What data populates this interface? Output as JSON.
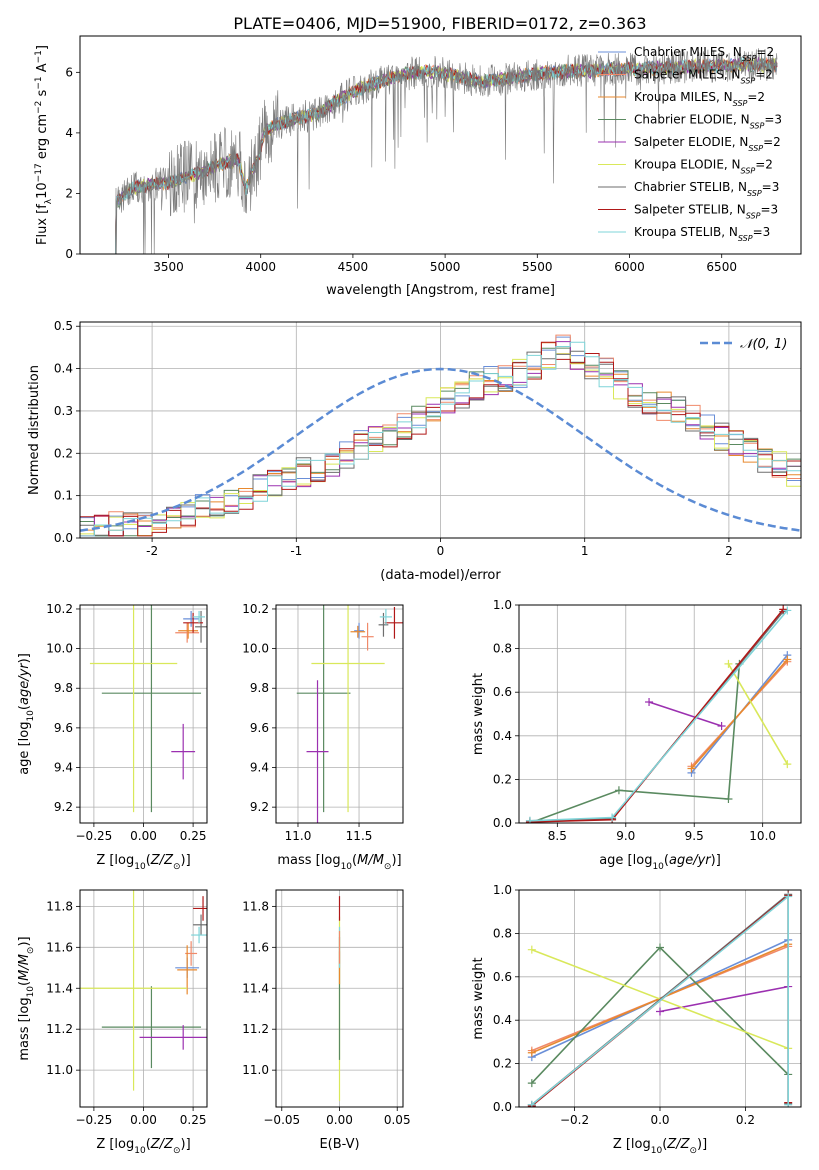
{
  "figure_title": "PLATE=0406, MJD=51900, FIBERID=0172, z=0.363",
  "colors": {
    "Chabrier MILES": "#6a8fd8",
    "Salpeter MILES": "#f08a6a",
    "Kroupa MILES": "#e8892e",
    "Chabrier ELODIE": "#5a8a60",
    "Salpeter ELODIE": "#9b30b0",
    "Kroupa ELODIE": "#d9e85a",
    "Chabrier STELIB": "#6e6e6e",
    "Salpeter STELIB": "#b01818",
    "Kroupa STELIB": "#7fd4d8",
    "gaussian": "#5b8bd4"
  },
  "chart_data": [
    {
      "id": "spectrum",
      "type": "line",
      "xlabel": "wavelength [Angstrom, rest frame]",
      "ylabel_parts": [
        "Flux [f",
        "λ",
        "10",
        "−17",
        " erg cm",
        "−2",
        " s",
        "−1",
        " A",
        "−1",
        "]"
      ],
      "xlim": [
        3020,
        6930
      ],
      "ylim": [
        0,
        7.2
      ],
      "xticks": [
        3500,
        4000,
        4500,
        5000,
        5500,
        6000,
        6500
      ],
      "yticks": [
        0,
        2,
        4,
        6
      ],
      "x_start": 3200,
      "x_end": 6800,
      "continuum_nodes": [
        [
          3200,
          0.0
        ],
        [
          3215,
          1.7
        ],
        [
          3300,
          2.15
        ],
        [
          3400,
          2.3
        ],
        [
          3500,
          2.35
        ],
        [
          3600,
          2.55
        ],
        [
          3700,
          2.75
        ],
        [
          3800,
          3.0
        ],
        [
          3880,
          3.1
        ],
        [
          3920,
          2.1
        ],
        [
          3950,
          2.7
        ],
        [
          3990,
          3.2
        ],
        [
          4020,
          4.05
        ],
        [
          4100,
          4.3
        ],
        [
          4200,
          4.5
        ],
        [
          4300,
          4.6
        ],
        [
          4400,
          5.0
        ],
        [
          4500,
          5.35
        ],
        [
          4600,
          5.6
        ],
        [
          4700,
          5.8
        ],
        [
          4800,
          5.95
        ],
        [
          4900,
          6.05
        ],
        [
          5000,
          5.95
        ],
        [
          5100,
          5.8
        ],
        [
          5200,
          5.7
        ],
        [
          5300,
          5.75
        ],
        [
          5400,
          5.85
        ],
        [
          5500,
          5.95
        ],
        [
          5600,
          6.0
        ],
        [
          5700,
          6.05
        ],
        [
          5800,
          6.05
        ],
        [
          5900,
          6.1
        ],
        [
          6000,
          6.1
        ],
        [
          6200,
          6.15
        ],
        [
          6400,
          6.2
        ],
        [
          6600,
          6.25
        ],
        [
          6800,
          6.25
        ]
      ],
      "legend": [
        {
          "label": "Chabrier MILES",
          "nssp": "2"
        },
        {
          "label": "Salpeter MILES",
          "nssp": "2"
        },
        {
          "label": "Kroupa MILES",
          "nssp": "2"
        },
        {
          "label": "Chabrier ELODIE",
          "nssp": "3"
        },
        {
          "label": "Salpeter ELODIE",
          "nssp": "2"
        },
        {
          "label": "Kroupa ELODIE",
          "nssp": "2"
        },
        {
          "label": "Chabrier STELIB",
          "nssp": "3"
        },
        {
          "label": "Salpeter STELIB",
          "nssp": "3"
        },
        {
          "label": "Kroupa STELIB",
          "nssp": "3"
        }
      ],
      "legend_position": "upper right",
      "legend_nssp_prefix": "N",
      "legend_nssp_sub": "SSP"
    },
    {
      "id": "residual_histogram",
      "type": "histogram",
      "xlabel": "(data-model)/error",
      "ylabel": "Normed distribution",
      "xlim": [
        -2.5,
        2.5
      ],
      "ylim": [
        0,
        0.51
      ],
      "xticks": [
        -2,
        -1,
        0,
        1,
        2
      ],
      "yticks": [
        0.0,
        0.1,
        0.2,
        0.3,
        0.4,
        0.5
      ],
      "bin_width": 0.1,
      "bin_start": -2.5,
      "base_values": [
        0.022,
        0.025,
        0.028,
        0.032,
        0.038,
        0.045,
        0.052,
        0.06,
        0.07,
        0.08,
        0.09,
        0.1,
        0.115,
        0.13,
        0.14,
        0.155,
        0.165,
        0.18,
        0.2,
        0.22,
        0.235,
        0.25,
        0.265,
        0.28,
        0.3,
        0.32,
        0.34,
        0.36,
        0.37,
        0.38,
        0.39,
        0.41,
        0.43,
        0.45,
        0.43,
        0.41,
        0.39,
        0.36,
        0.34,
        0.32,
        0.31,
        0.3,
        0.28,
        0.26,
        0.24,
        0.225,
        0.21,
        0.19,
        0.17,
        0.155,
        0.14,
        0.13,
        0.115,
        0.1,
        0.09,
        0.08,
        0.07,
        0.06,
        0.05,
        0.045
      ],
      "gaussian_label": "𝒩(0, 1)",
      "gaussian_mu": 0,
      "gaussian_sigma": 1,
      "legend_position": "upper right"
    },
    {
      "id": "age_vs_Z",
      "type": "errorbar",
      "xlabel_parts": [
        "Z [log",
        "10",
        "(",
        "Z/Z",
        "⊙",
        ")]"
      ],
      "ylabel_parts": [
        "age  [log",
        "10",
        "(",
        "age/yr",
        ")]"
      ],
      "xlim": [
        -0.32,
        0.32
      ],
      "ylim": [
        9.12,
        10.22
      ],
      "xticks": [
        -0.25,
        0.0,
        0.25
      ],
      "xtick_labels": [
        "−0.25",
        "0.00",
        "0.25"
      ],
      "yticks": [
        9.2,
        9.4,
        9.6,
        9.8,
        10.0,
        10.2
      ],
      "points": [
        {
          "model": "Chabrier MILES",
          "x": 0.24,
          "y": 10.15,
          "xerr": 0.04,
          "yerr": 0.04
        },
        {
          "model": "Salpeter MILES",
          "x": 0.22,
          "y": 10.08,
          "xerr": 0.06,
          "yerr": 0.05
        },
        {
          "model": "Kroupa MILES",
          "x": 0.225,
          "y": 10.09,
          "xerr": 0.05,
          "yerr": 0.04
        },
        {
          "model": "Chabrier ELODIE",
          "x": 0.04,
          "y": 9.775,
          "xerr": 0.25,
          "yerr": 0.6
        },
        {
          "model": "Salpeter ELODIE",
          "x": 0.2,
          "y": 9.48,
          "xerr": 0.06,
          "yerr": 0.14
        },
        {
          "model": "Salpeter ELODIE",
          "x": -0.02,
          "y": 9.48,
          "xerr": 0.0,
          "yerr": 0.0
        },
        {
          "model": "Kroupa ELODIE",
          "x": -0.05,
          "y": 9.925,
          "xerr": 0.22,
          "yerr": 0.75
        },
        {
          "model": "Chabrier STELIB",
          "x": 0.29,
          "y": 10.11,
          "xerr": 0.03,
          "yerr": 0.08
        },
        {
          "model": "Salpeter STELIB",
          "x": 0.25,
          "y": 10.13,
          "xerr": 0.05,
          "yerr": 0.05
        },
        {
          "model": "Kroupa STELIB",
          "x": 0.28,
          "y": 10.16,
          "xerr": 0.03,
          "yerr": 0.03
        }
      ]
    },
    {
      "id": "age_vs_mass",
      "type": "errorbar",
      "xlabel_parts": [
        "mass [log",
        "10",
        "(",
        "M/M",
        "⊙",
        ")]"
      ],
      "ylabel_parts": [],
      "xlim": [
        10.82,
        11.86
      ],
      "ylim": [
        9.12,
        10.22
      ],
      "xticks": [
        11.0,
        11.5
      ],
      "xtick_labels": [
        "11.0",
        "11.5"
      ],
      "yticks": [
        9.2,
        9.4,
        9.6,
        9.8,
        10.0,
        10.2
      ],
      "points": [
        {
          "model": "Chabrier MILES",
          "x": 11.5,
          "y": 10.09,
          "xerr": 0.04,
          "yerr": 0.04
        },
        {
          "model": "Salpeter MILES",
          "x": 11.57,
          "y": 10.06,
          "xerr": 0.05,
          "yerr": 0.07
        },
        {
          "model": "Kroupa MILES",
          "x": 11.49,
          "y": 10.085,
          "xerr": 0.06,
          "yerr": 0.03
        },
        {
          "model": "Chabrier ELODIE",
          "x": 11.21,
          "y": 9.775,
          "xerr": 0.22,
          "yerr": 0.6
        },
        {
          "model": "Salpeter ELODIE",
          "x": 11.16,
          "y": 9.48,
          "xerr": 0.09,
          "yerr": 0.36
        },
        {
          "model": "Kroupa ELODIE",
          "x": 11.41,
          "y": 9.925,
          "xerr": 0.3,
          "yerr": 0.75
        },
        {
          "model": "Chabrier STELIB",
          "x": 11.7,
          "y": 10.12,
          "xerr": 0.04,
          "yerr": 0.06
        },
        {
          "model": "Salpeter STELIB",
          "x": 11.79,
          "y": 10.13,
          "xerr": 0.08,
          "yerr": 0.08
        },
        {
          "model": "Kroupa STELIB",
          "x": 11.72,
          "y": 10.16,
          "xerr": 0.05,
          "yerr": 0.04
        }
      ]
    },
    {
      "id": "weight_vs_age",
      "type": "line",
      "xlabel_parts": [
        "age  [log",
        "10",
        "(",
        "age/yr",
        ")]"
      ],
      "ylabel": "mass weight",
      "xlim": [
        8.22,
        10.28
      ],
      "ylim": [
        0,
        1.0
      ],
      "xticks": [
        8.5,
        9.0,
        9.5,
        10.0
      ],
      "xtick_labels": [
        "8.5",
        "9.0",
        "9.5",
        "10.0"
      ],
      "yticks": [
        0.0,
        0.2,
        0.4,
        0.6,
        0.8,
        1.0
      ],
      "series": [
        {
          "model": "Chabrier MILES",
          "points": [
            [
              9.48,
              0.23
            ],
            [
              10.18,
              0.77
            ]
          ]
        },
        {
          "model": "Salpeter MILES",
          "points": [
            [
              9.48,
              0.26
            ],
            [
              10.18,
              0.74
            ]
          ]
        },
        {
          "model": "Kroupa MILES",
          "points": [
            [
              9.48,
              0.25
            ],
            [
              10.18,
              0.75
            ]
          ]
        },
        {
          "model": "Chabrier ELODIE",
          "points": [
            [
              8.3,
              0.0
            ],
            [
              8.95,
              0.15
            ],
            [
              9.75,
              0.11
            ],
            [
              9.83,
              0.73
            ]
          ]
        },
        {
          "model": "Salpeter ELODIE",
          "points": [
            [
              9.17,
              0.555
            ],
            [
              9.7,
              0.445
            ]
          ]
        },
        {
          "model": "Kroupa ELODIE",
          "points": [
            [
              9.75,
              0.73
            ],
            [
              10.18,
              0.27
            ]
          ]
        },
        {
          "model": "Chabrier STELIB",
          "points": [
            [
              8.3,
              0.01
            ],
            [
              8.9,
              0.02
            ],
            [
              10.15,
              0.97
            ]
          ]
        },
        {
          "model": "Salpeter STELIB",
          "points": [
            [
              8.3,
              0.005
            ],
            [
              8.9,
              0.015
            ],
            [
              10.15,
              0.98
            ]
          ]
        },
        {
          "model": "Kroupa STELIB",
          "points": [
            [
              8.3,
              0.01
            ],
            [
              8.9,
              0.025
            ],
            [
              10.18,
              0.975
            ]
          ]
        }
      ]
    },
    {
      "id": "mass_vs_Z",
      "type": "errorbar",
      "xlabel_parts": [
        "Z [log",
        "10",
        "(",
        "Z/Z",
        "⊙",
        ")]"
      ],
      "ylabel_parts": [
        "mass [log",
        "10",
        "(",
        "M/M",
        "⊙",
        ")]"
      ],
      "xlim": [
        -0.32,
        0.32
      ],
      "ylim": [
        10.82,
        11.88
      ],
      "xticks": [
        -0.25,
        0.0,
        0.25
      ],
      "xtick_labels": [
        "−0.25",
        "0.00",
        "0.25"
      ],
      "yticks": [
        11.0,
        11.2,
        11.4,
        11.6,
        11.8
      ],
      "points": [
        {
          "model": "Chabrier MILES",
          "x": 0.22,
          "y": 11.5,
          "xerr": 0.06,
          "yerr": 0.05
        },
        {
          "model": "Salpeter MILES",
          "x": 0.24,
          "y": 11.57,
          "xerr": 0.03,
          "yerr": 0.06
        },
        {
          "model": "Kroupa MILES",
          "x": 0.22,
          "y": 11.49,
          "xerr": 0.05,
          "yerr": 0.12
        },
        {
          "model": "Chabrier ELODIE",
          "x": 0.04,
          "y": 11.21,
          "xerr": 0.25,
          "yerr": 0.2
        },
        {
          "model": "Salpeter ELODIE",
          "x": 0.2,
          "y": 11.16,
          "xerr": 0.22,
          "yerr": 0.06
        },
        {
          "model": "Kroupa ELODIE",
          "x": -0.05,
          "y": 11.4,
          "xerr": 0.27,
          "yerr": 0.5
        },
        {
          "model": "Chabrier STELIB",
          "x": 0.29,
          "y": 11.71,
          "xerr": 0.04,
          "yerr": 0.05
        },
        {
          "model": "Salpeter STELIB",
          "x": 0.3,
          "y": 11.79,
          "xerr": 0.05,
          "yerr": 0.06
        },
        {
          "model": "Kroupa STELIB",
          "x": 0.28,
          "y": 11.66,
          "xerr": 0.04,
          "yerr": 0.04
        }
      ]
    },
    {
      "id": "mass_vs_EBV",
      "type": "errorbar",
      "xlabel": "E(B-V)",
      "ylabel_parts": [],
      "xlim": [
        -0.055,
        0.055
      ],
      "ylim": [
        10.82,
        11.88
      ],
      "xticks": [
        -0.05,
        0.0,
        0.05
      ],
      "xtick_labels": [
        "−0.05",
        "0.00",
        "0.05"
      ],
      "yticks": [
        11.0,
        11.2,
        11.4,
        11.6,
        11.8
      ],
      "points": [
        {
          "model": "Kroupa ELODIE",
          "x": 0.0,
          "y": 11.3,
          "xerr": 0.0,
          "yerr": 0.45
        },
        {
          "model": "Chabrier ELODIE",
          "x": 0.0,
          "y": 11.35,
          "xerr": 0.0,
          "yerr": 0.3
        },
        {
          "model": "Kroupa MILES",
          "x": 0.0,
          "y": 11.5,
          "xerr": 0.0,
          "yerr": 0.08
        },
        {
          "model": "Kroupa STELIB",
          "x": 0.0,
          "y": 11.6,
          "xerr": 0.0,
          "yerr": 0.1
        },
        {
          "model": "Salpeter STELIB",
          "x": 0.0,
          "y": 11.79,
          "xerr": 0.0,
          "yerr": 0.06
        },
        {
          "model": "Salpeter MILES",
          "x": 0.0,
          "y": 11.6,
          "xerr": 0.0,
          "yerr": 0.08
        }
      ]
    },
    {
      "id": "weight_vs_Z",
      "type": "line",
      "xlabel_parts": [
        "Z [log",
        "10",
        "(",
        "Z/Z",
        "⊙",
        ")]"
      ],
      "ylabel": "mass weight",
      "xlim": [
        -0.33,
        0.33
      ],
      "ylim": [
        0,
        1.0
      ],
      "xticks": [
        -0.2,
        0.0,
        0.2
      ],
      "xtick_labels": [
        "−0.2",
        "0.0",
        "0.2"
      ],
      "yticks": [
        0.0,
        0.2,
        0.4,
        0.6,
        0.8,
        1.0
      ],
      "series": [
        {
          "model": "Chabrier MILES",
          "points": [
            [
              -0.3,
              0.23
            ],
            [
              0.3,
              0.77
            ]
          ]
        },
        {
          "model": "Salpeter MILES",
          "points": [
            [
              -0.3,
              0.26
            ],
            [
              0.3,
              0.74
            ]
          ]
        },
        {
          "model": "Kroupa MILES",
          "points": [
            [
              -0.3,
              0.25
            ],
            [
              0.3,
              0.75
            ]
          ]
        },
        {
          "model": "Chabrier ELODIE",
          "points": [
            [
              -0.3,
              0.11
            ],
            [
              0.0,
              0.735
            ],
            [
              0.3,
              0.15
            ]
          ]
        },
        {
          "model": "Salpeter ELODIE",
          "points": [
            [
              0.0,
              0.44
            ],
            [
              0.3,
              0.555
            ]
          ]
        },
        {
          "model": "Kroupa ELODIE",
          "points": [
            [
              -0.3,
              0.725
            ],
            [
              0.3,
              0.27
            ]
          ]
        },
        {
          "model": "Chabrier STELIB",
          "points": [
            [
              -0.3,
              0.01
            ],
            [
              0.3,
              0.98
            ],
            [
              0.3,
              0.015
            ]
          ]
        },
        {
          "model": "Salpeter STELIB",
          "points": [
            [
              -0.3,
              0.005
            ],
            [
              0.3,
              0.975
            ],
            [
              0.3,
              0.02
            ]
          ]
        },
        {
          "model": "Kroupa STELIB",
          "points": [
            [
              -0.3,
              0.01
            ],
            [
              0.3,
              0.97
            ],
            [
              0.3,
              0.01
            ]
          ]
        }
      ]
    }
  ]
}
